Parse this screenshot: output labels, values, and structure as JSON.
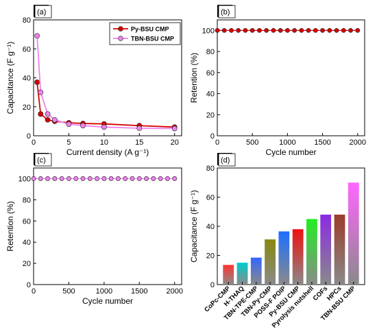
{
  "chart_data": [
    {
      "panel_label": "(a)",
      "type": "line",
      "xlabel": "Current density (A g⁻¹)",
      "ylabel": "Capacitance (F g⁻¹)",
      "xlim": [
        0,
        21
      ],
      "ylim": [
        0,
        80
      ],
      "xticks": [
        "0",
        "5",
        "10",
        "15",
        "20"
      ],
      "yticks": [
        "0",
        "20",
        "40",
        "60",
        "80"
      ],
      "legend_position": "top-right",
      "series": [
        {
          "name": "Py-BSU CMP",
          "color": "#d40000",
          "x": [
            0.5,
            1,
            2,
            3,
            5,
            7,
            10,
            15,
            20
          ],
          "values": [
            37,
            15,
            11,
            10,
            9,
            8.5,
            8.2,
            7,
            6
          ]
        },
        {
          "name": "TBN-BSU CMP",
          "color": "#ee82ee",
          "x": [
            0.5,
            1,
            2,
            3,
            5,
            7,
            10,
            15,
            20
          ],
          "values": [
            69,
            30,
            15,
            11,
            8,
            7,
            6,
            5.2,
            5
          ]
        }
      ]
    },
    {
      "panel_label": "(b)",
      "type": "scatter",
      "xlabel": "Cycle number",
      "ylabel": "Retention (%)",
      "xlim": [
        0,
        2100
      ],
      "ylim": [
        0,
        110
      ],
      "xticks": [
        "0",
        "500",
        "1000",
        "1500",
        "2000"
      ],
      "yticks": [
        "0",
        "20",
        "40",
        "60",
        "80",
        "100"
      ],
      "series": [
        {
          "color": "#d40000",
          "x": [
            1,
            100,
            200,
            300,
            400,
            500,
            600,
            700,
            800,
            900,
            1000,
            1100,
            1200,
            1300,
            1400,
            1500,
            1600,
            1700,
            1800,
            1900,
            2000
          ],
          "values": [
            100,
            100,
            100,
            100,
            100,
            100,
            100,
            100,
            100,
            100,
            100,
            100,
            100,
            100,
            100,
            100,
            100,
            100,
            100,
            100,
            100
          ]
        }
      ]
    },
    {
      "panel_label": "(c)",
      "type": "scatter",
      "xlabel": "Cycle number",
      "ylabel": "Retention (%)",
      "xlim": [
        0,
        2100
      ],
      "ylim": [
        0,
        110
      ],
      "xticks": [
        "0",
        "500",
        "1000",
        "1500",
        "2000"
      ],
      "yticks": [
        "0",
        "20",
        "40",
        "60",
        "80",
        "100"
      ],
      "series": [
        {
          "color": "#ee82ee",
          "x": [
            1,
            100,
            200,
            300,
            400,
            500,
            600,
            700,
            800,
            900,
            1000,
            1100,
            1200,
            1300,
            1400,
            1500,
            1600,
            1700,
            1800,
            1900,
            2000
          ],
          "values": [
            100,
            100,
            100,
            100,
            100,
            100,
            100,
            100,
            100,
            100,
            100,
            100,
            100,
            100,
            100,
            100,
            100,
            100,
            100,
            100,
            100
          ]
        }
      ]
    },
    {
      "panel_label": "(d)",
      "type": "bar",
      "ylabel": "Capacitance (F g⁻¹)",
      "ylim": [
        0,
        80
      ],
      "yticks": [
        "0",
        "20",
        "40",
        "60",
        "80"
      ],
      "categories": [
        "CoPc-CMP",
        "H-THAQ",
        "TBN-TPE-CMP",
        "TBN-Py-CMP",
        "POSS-F POIP",
        "Py-BSU CMP",
        "Pyrolysis nutshell",
        "COFs",
        "HPCs",
        "TBN-BSU CMP"
      ],
      "values": [
        13.5,
        15,
        18.5,
        31,
        36.5,
        38,
        45,
        48,
        48,
        70
      ],
      "colors": [
        "#ff3333",
        "#00cccc",
        "#3366ff",
        "#88880f",
        "#1e6fff",
        "#ee1111",
        "#22ee22",
        "#8a2be2",
        "#9b3c2a",
        "#ff66ff"
      ]
    }
  ]
}
